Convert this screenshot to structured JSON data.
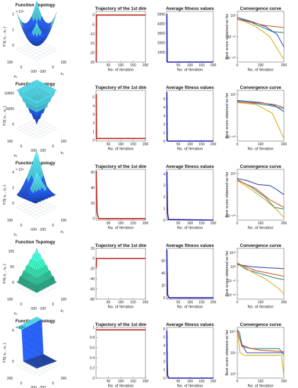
{
  "panel_titles": {
    "topology": "Function Topology",
    "trajectory": "Trajectory of the 1st dim",
    "fitness": "Average fitness values",
    "convergence": "Convergence curve"
  },
  "axis_labels": {
    "iteration": "No. of Iteration",
    "best_score": "Best score obtained so far",
    "x1": "x₁",
    "x2": "x₂"
  },
  "colors": {
    "trajectory_line": "#c0201b",
    "fitness_line": "#1a1ab8",
    "series_1": "#2e4ab8",
    "series_2": "#d4561e",
    "series_3": "#d8ae1e",
    "series_4": "#2e8c8c",
    "surface_dark": "#1e4fd0",
    "surface_light": "#4fd6e6",
    "f4_surface": "#30c49a"
  },
  "chart_data": [
    {
      "row": 1,
      "function": "F1",
      "topology": {
        "type": "surface",
        "zlabel": "F1( x₁ , x₂ )",
        "z_multiplier": "× 10⁴",
        "z_ticks": [
          "0",
          "1",
          "2"
        ],
        "x1_ticks": [
          "-100",
          "0",
          "100"
        ],
        "x2_ticks": [
          "100",
          "0",
          "-100"
        ],
        "shape": "bowl"
      },
      "trajectory": {
        "type": "line",
        "x": [
          1,
          2,
          5,
          200
        ],
        "y": [
          -25,
          0,
          0,
          0
        ],
        "xlim": [
          0,
          200
        ],
        "ylim": [
          -25,
          2
        ],
        "yticks": [
          "0",
          "-5",
          "-10",
          "-15",
          "-20",
          "-25"
        ],
        "xticks": [
          "50",
          "100",
          "150",
          "200"
        ]
      },
      "fitness": {
        "type": "line",
        "x": [
          1,
          2,
          5,
          200
        ],
        "y": [
          5000,
          30,
          0,
          0
        ],
        "xlim": [
          0,
          200
        ],
        "ylim": [
          0,
          5300
        ],
        "yticks": [
          "5000",
          "4000",
          "3000",
          "2000",
          "1000"
        ],
        "xticks": [
          "50",
          "100",
          "150",
          "200"
        ]
      },
      "convergence": {
        "type": "line",
        "log_y": true,
        "yticks": [
          "10⁰",
          "10⁻⁵⁰",
          "10⁻¹⁰⁰"
        ],
        "xticks": [
          "0",
          "100",
          "200"
        ]
      }
    },
    {
      "row": 2,
      "function": "F2",
      "topology": {
        "type": "surface",
        "zlabel": "F2( x₁ , x₂ )",
        "z_multiplier": "",
        "z_ticks": [
          "0",
          "5000",
          "10000"
        ],
        "x1_ticks": [
          "-100",
          "0",
          "100"
        ],
        "x2_ticks": [
          "100",
          "0",
          "-100"
        ],
        "shape": "pyramid"
      },
      "trajectory": {
        "type": "line",
        "x": [
          1,
          2,
          5,
          200
        ],
        "y": [
          5.4,
          0.2,
          0.2,
          0.2
        ],
        "xlim": [
          0,
          200
        ],
        "ylim": [
          -0.1,
          5.8
        ],
        "yticks": [
          "5",
          "4",
          "3",
          "2",
          "1",
          "0"
        ],
        "xticks": [
          "50",
          "100",
          "150",
          "200"
        ]
      },
      "fitness": {
        "type": "line",
        "x": [
          1,
          2,
          5,
          200
        ],
        "y": [
          5.8,
          0.1,
          0,
          0
        ],
        "xlim": [
          0,
          200
        ],
        "ylim": [
          0,
          6
        ],
        "yticks": [
          "5",
          "4",
          "3",
          "2",
          "1",
          "0"
        ],
        "xticks": [
          "50",
          "100",
          "150",
          "200"
        ]
      },
      "convergence": {
        "type": "line",
        "log_y": true,
        "yticks": [
          "10⁰",
          "10⁻¹⁰⁰"
        ],
        "xticks": [
          "0",
          "100",
          "200"
        ]
      }
    },
    {
      "row": 3,
      "function": "F3",
      "topology": {
        "type": "surface",
        "zlabel": "F3( x₁ , x₂ )",
        "z_multiplier": "× 10⁴",
        "z_ticks": [
          "0",
          "2",
          "4"
        ],
        "x1_ticks": [
          "-100",
          "0",
          "100"
        ],
        "x2_ticks": [
          "100",
          "0",
          "-100"
        ],
        "shape": "ridge"
      },
      "trajectory": {
        "type": "line",
        "x": [
          1,
          2,
          4,
          10,
          200
        ],
        "y": [
          62,
          42,
          8,
          0,
          0
        ],
        "xlim": [
          0,
          200
        ],
        "ylim": [
          -2,
          64
        ],
        "yticks": [
          "60",
          "40",
          "20",
          "0"
        ],
        "xticks": [
          "50",
          "100",
          "150",
          "200"
        ]
      },
      "fitness": {
        "type": "line",
        "x": [
          1,
          2,
          4,
          8,
          200
        ],
        "y": [
          4.2,
          2.5,
          0.6,
          0.05,
          0
        ],
        "xlim": [
          0,
          200
        ],
        "ylim": [
          0,
          4.4
        ],
        "yticks": [
          "4",
          "3",
          "2",
          "1",
          "0"
        ],
        "xticks": [
          "50",
          "100",
          "150",
          "200"
        ]
      },
      "convergence": {
        "type": "line",
        "log_y": true,
        "yticks": [
          "10⁰",
          "10⁻¹⁰⁰"
        ],
        "xticks": [
          "0",
          "100",
          "200"
        ]
      }
    },
    {
      "row": 4,
      "function": "F4",
      "topology": {
        "type": "surface",
        "zlabel": "F4( x₁ , x₂ )",
        "z_multiplier": "",
        "z_ticks": [
          "0",
          "50",
          "100"
        ],
        "x1_ticks": [
          "-100",
          "0",
          "100"
        ],
        "x2_ticks": [
          "100",
          "0",
          "-100"
        ],
        "shape": "inverted-pyramid"
      },
      "trajectory": {
        "type": "line",
        "x": [
          1,
          2,
          5,
          200
        ],
        "y": [
          -18,
          0,
          0,
          0
        ],
        "xlim": [
          0,
          200
        ],
        "ylim": [
          -80,
          20
        ],
        "yticks": [
          "20",
          "0",
          "-20",
          "-40",
          "-60",
          "-80"
        ],
        "xticks": [
          "50",
          "100",
          "150",
          "200"
        ]
      },
      "fitness": {
        "type": "line",
        "x": [
          1,
          2,
          4,
          10,
          200
        ],
        "y": [
          78,
          40,
          5,
          0,
          0
        ],
        "xlim": [
          0,
          200
        ],
        "ylim": [
          -2,
          80
        ],
        "yticks": [
          "60",
          "40",
          "20",
          "0"
        ],
        "xticks": [
          "50",
          "100",
          "150",
          "200"
        ]
      },
      "convergence": {
        "type": "line",
        "log_y": true,
        "yticks": [
          "10¹⁰",
          "10⁰",
          "10⁻¹⁰",
          "10⁻²⁰"
        ],
        "xticks": [
          "0",
          "100",
          "200"
        ]
      }
    },
    {
      "row": 5,
      "function": "F5",
      "topology": {
        "type": "surface",
        "zlabel": "F5( x₁ , x₂ )",
        "z_multiplier": "× 10¹⁰",
        "z_ticks": [
          "0",
          "5"
        ],
        "x1_ticks": [
          "-200",
          "0",
          "200"
        ],
        "x2_ticks": [
          "200",
          "0",
          "-200"
        ],
        "shape": "valley"
      },
      "trajectory": {
        "type": "line",
        "x": [
          1,
          2,
          5,
          200
        ],
        "y": [
          0.95,
          0.95,
          0.95,
          0.95
        ],
        "xlim": [
          0,
          200
        ],
        "ylim": [
          0,
          1
        ],
        "yticks": [
          "1",
          "0.8",
          "0.6",
          "0.4",
          "0.2",
          "0"
        ],
        "xticks": [
          "50",
          "100",
          "150",
          "200"
        ]
      },
      "fitness": {
        "type": "line",
        "x": [
          1,
          2,
          4,
          10,
          200
        ],
        "y": [
          5.8,
          2.0,
          0.3,
          0,
          0
        ],
        "xlim": [
          0,
          200
        ],
        "ylim": [
          0,
          6.2
        ],
        "yticks": [
          "6",
          "5",
          "4",
          "3",
          "2",
          "1",
          "0"
        ],
        "xticks": [
          "50",
          "100",
          "150",
          "200"
        ]
      },
      "convergence": {
        "type": "line",
        "log_y": true,
        "yticks": [
          "10¹⁰",
          "10⁵",
          "10⁰"
        ],
        "xticks": [
          "0",
          "100",
          "200"
        ]
      }
    }
  ]
}
